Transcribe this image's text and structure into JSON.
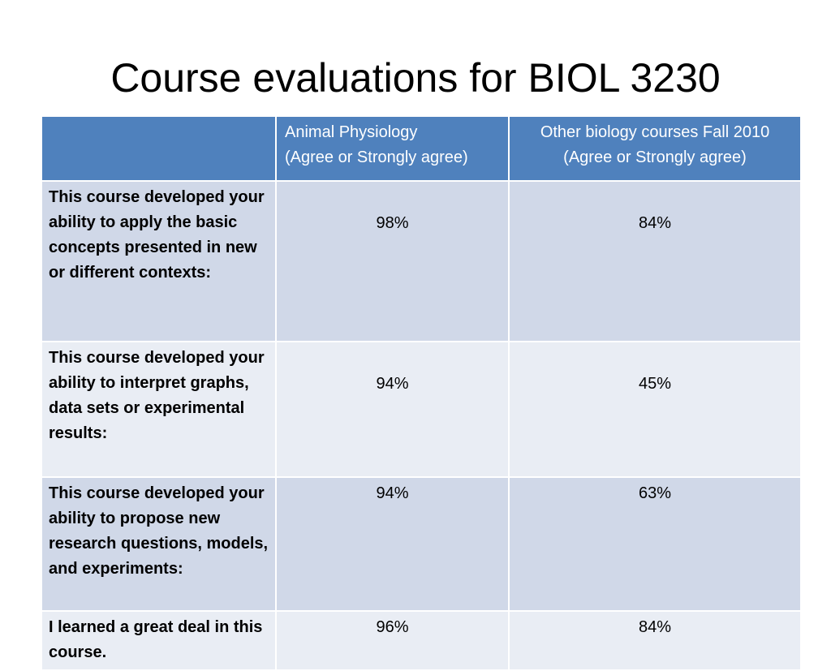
{
  "slide": {
    "title": "Course evaluations for BIOL 3230"
  },
  "table": {
    "headers": {
      "empty": "",
      "col_a_line1": "Animal Physiology",
      "col_a_line2": "(Agree or Strongly agree)",
      "col_b_line1": "Other biology courses Fall 2010",
      "col_b_line2": "(Agree or Strongly agree)"
    },
    "rows": [
      {
        "question": "This course developed your ability to apply the basic concepts presented in new or different contexts:",
        "animal_physiology": "98%",
        "other_courses": "84%"
      },
      {
        "question": "This course developed your ability to interpret graphs, data sets or experimental results:",
        "animal_physiology": "94%",
        "other_courses": "45%"
      },
      {
        "question": "This course developed your ability to propose new research questions, models, and experiments:",
        "animal_physiology": "94%",
        "other_courses": "63%"
      },
      {
        "question": "I learned a great deal in this course.",
        "animal_physiology": "96%",
        "other_courses": "84%"
      }
    ]
  },
  "colors": {
    "header_bg": "#4f81bd",
    "row_odd_bg": "#d0d8e8",
    "row_even_bg": "#e9edf4"
  }
}
